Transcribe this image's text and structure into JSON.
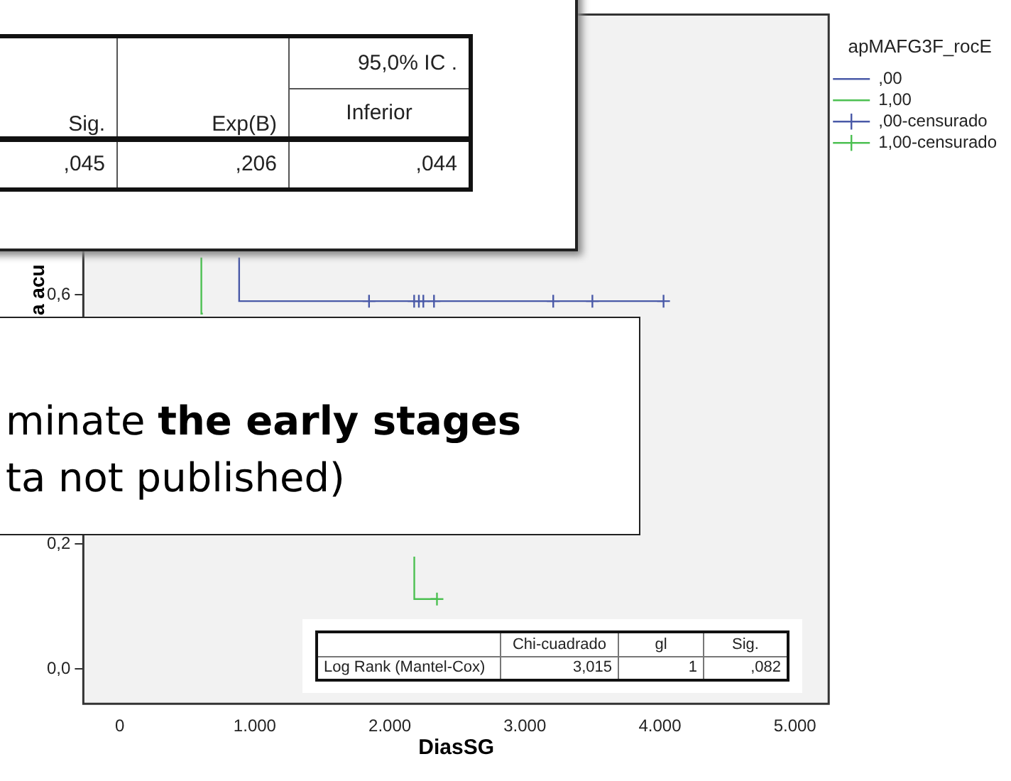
{
  "chart_data": {
    "type": "line",
    "xlabel": "DiasSG",
    "ylabel": "a acu",
    "legend_title": "apMAFG3F_rocE",
    "legend": "top right",
    "grid": false,
    "xlim": [
      -270,
      5250
    ],
    "xticks": [
      0,
      {
        "value": 1000,
        "label": "1.000"
      },
      {
        "value": 2000,
        "label": "2.000"
      },
      {
        "value": 3000,
        "label": "3.000"
      },
      {
        "value": 4000,
        "label": "4.000"
      },
      {
        "value": 5000,
        "label": "5.000"
      }
    ],
    "ylim": [
      -0.056,
      1.05
    ],
    "yticks": [
      {
        "value": 0,
        "label": "0,0"
      },
      {
        "value": 0.2,
        "label": "0,2"
      },
      {
        "value": 0.6,
        "label": "0,6"
      }
    ],
    "series": [
      {
        "name": ",00",
        "marker": "none",
        "color": "#4a5aa8",
        "x": [
          884,
          884,
          4027
        ],
        "values": [
          0.66,
          0.59,
          0.59
        ]
      },
      {
        "name": "1,00",
        "marker": "none",
        "color": "#4cc052",
        "x": [
          604,
          604,
          615,
          1500,
          2181,
          2181,
          2349
        ],
        "values": [
          0.66,
          0.57,
          0.57,
          null,
          0.18,
          0.112,
          0.112
        ]
      },
      {
        "name": ",00-censurado",
        "type": "scatter",
        "marker": "cross",
        "color": "#4a5aa8",
        "x": [
          1846,
          2180,
          2215,
          2248,
          2327,
          3210,
          3500,
          4027
        ],
        "values": [
          0.59,
          0.59,
          0.59,
          0.59,
          0.59,
          0.59,
          0.59,
          0.59
        ]
      },
      {
        "name": "1,00-censurado",
        "type": "scatter",
        "marker": "cross",
        "color": "#4cc052",
        "x": [
          2349
        ],
        "values": [
          0.112
        ]
      }
    ],
    "annotations": [
      "Sig.",
      "Exp(B)",
      "95,0% IC .",
      "Inferior",
      ",045",
      ",206",
      ",044",
      "minate",
      "the early stages",
      "ta not published)",
      "Chi-cuadrado",
      "gl",
      "Sig.",
      "Log Rank (Mantel-Cox)",
      "3,015",
      "1",
      ",082"
    ]
  }
}
